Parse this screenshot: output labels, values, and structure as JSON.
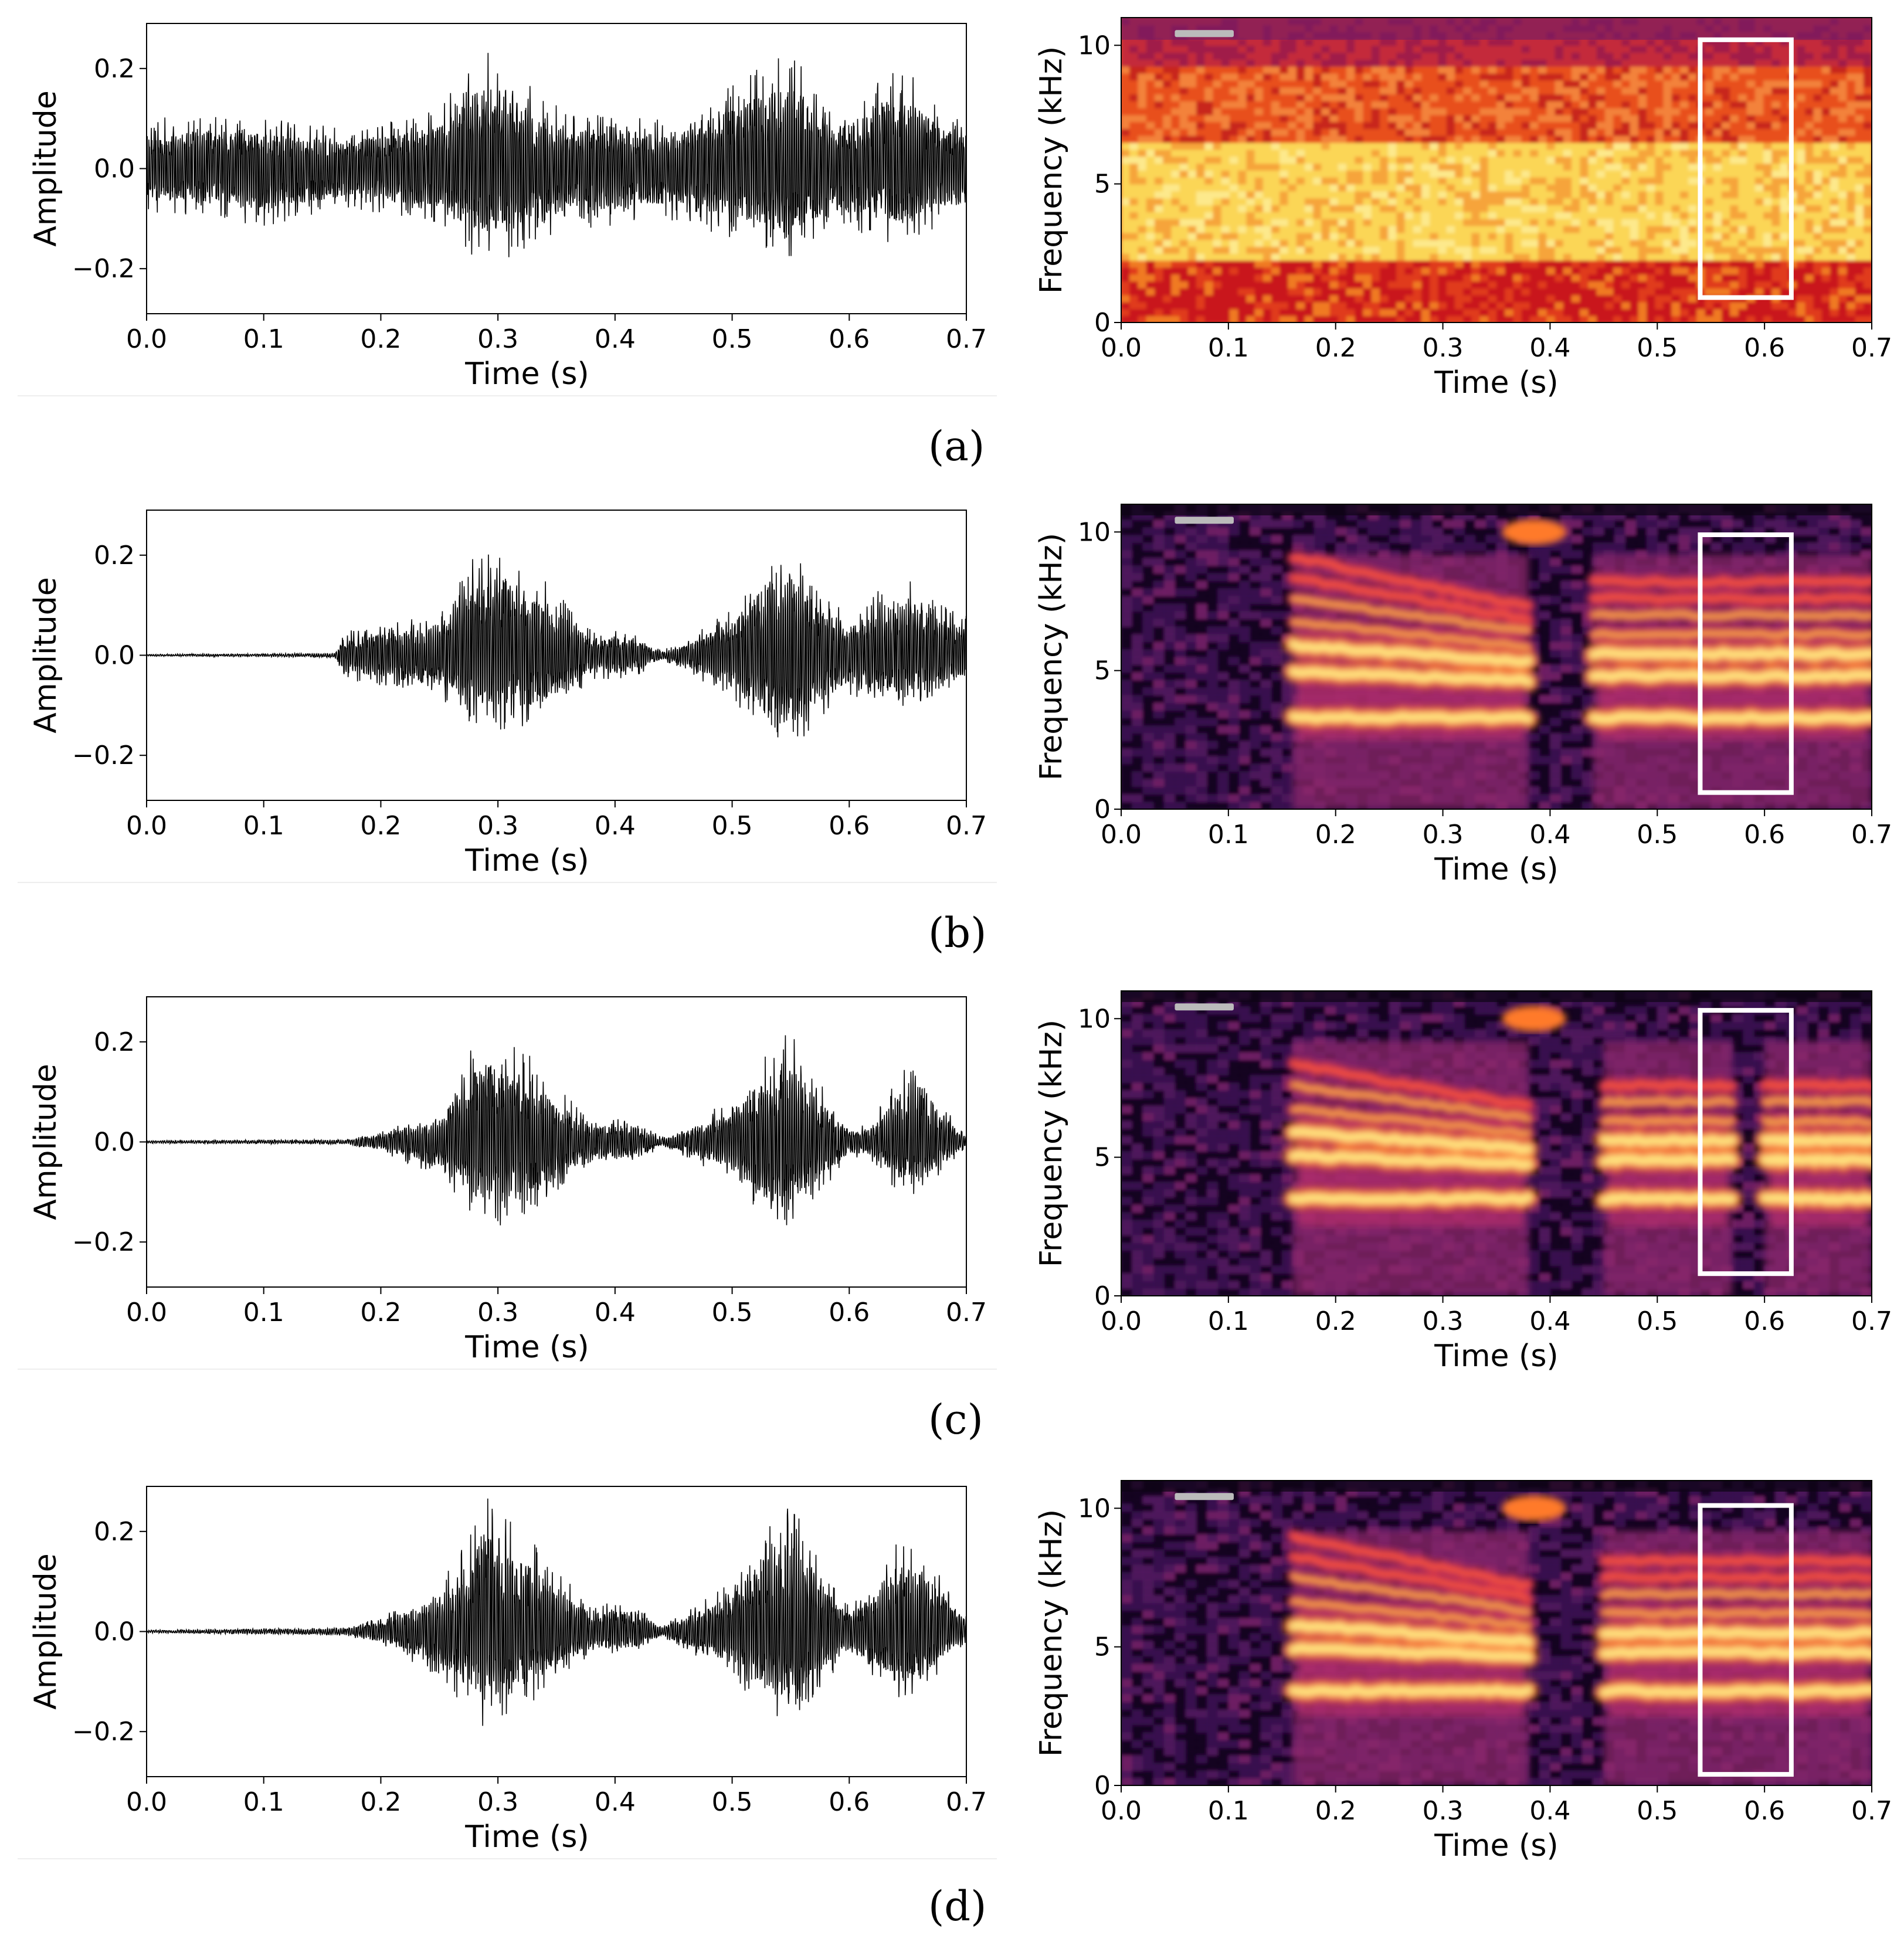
{
  "colors": {
    "waveform": "#000000",
    "highlight_box": "#ffffff",
    "colormap": "inferno-like (black-purple-red-orange-yellow)"
  },
  "panel_labels": [
    "(a)",
    "(b)",
    "(c)",
    "(d)"
  ],
  "chart_data": [
    {
      "panel": "(a)",
      "type": "line",
      "title": "",
      "xlabel": "Time (s)",
      "ylabel": "Amplitude",
      "xlim": [
        0.0,
        0.7
      ],
      "ylim": [
        -0.29,
        0.29
      ],
      "x_ticks": [
        "0.0",
        "0.1",
        "0.2",
        "0.3",
        "0.4",
        "0.5",
        "0.6",
        "0.7"
      ],
      "y_ticks": [
        "0.2",
        "0.0",
        "−0.2"
      ],
      "grid": false,
      "envelope": {
        "time": [
          0.0,
          0.05,
          0.1,
          0.15,
          0.17,
          0.2,
          0.25,
          0.28,
          0.3,
          0.33,
          0.36,
          0.4,
          0.43,
          0.46,
          0.5,
          0.53,
          0.55,
          0.58,
          0.6,
          0.63,
          0.65,
          0.68,
          0.7
        ],
        "upper": [
          0.1,
          0.11,
          0.1,
          0.09,
          0.08,
          0.09,
          0.12,
          0.22,
          0.24,
          0.16,
          0.11,
          0.12,
          0.1,
          0.11,
          0.17,
          0.22,
          0.24,
          0.14,
          0.13,
          0.19,
          0.2,
          0.11,
          0.1
        ],
        "lower": [
          -0.09,
          -0.1,
          -0.12,
          -0.09,
          -0.08,
          -0.09,
          -0.11,
          -0.18,
          -0.19,
          -0.15,
          -0.12,
          -0.12,
          -0.1,
          -0.11,
          -0.14,
          -0.16,
          -0.18,
          -0.13,
          -0.12,
          -0.15,
          -0.15,
          -0.11,
          -0.1
        ]
      }
    },
    {
      "panel": "(a)",
      "type": "heatmap",
      "title": "",
      "xlabel": "Time (s)",
      "ylabel": "Frequency (kHz)",
      "xlim": [
        0.0,
        0.7
      ],
      "ylim": [
        0,
        11
      ],
      "x_ticks": [
        "0.0",
        "0.1",
        "0.2",
        "0.3",
        "0.4",
        "0.5",
        "0.6",
        "0.7"
      ],
      "y_ticks": [
        "0",
        "5",
        "10"
      ],
      "highlight_box": {
        "t0": 0.54,
        "t1": 0.625,
        "f0": 0.9,
        "f1": 10.2
      },
      "description_values": {
        "style": "noisy",
        "harmonics": [],
        "voiced_segments": []
      }
    },
    {
      "panel": "(b)",
      "type": "line",
      "title": "",
      "xlabel": "Time (s)",
      "ylabel": "Amplitude",
      "xlim": [
        0.0,
        0.7
      ],
      "ylim": [
        -0.29,
        0.29
      ],
      "x_ticks": [
        "0.0",
        "0.1",
        "0.2",
        "0.3",
        "0.4",
        "0.5",
        "0.6",
        "0.7"
      ],
      "y_ticks": [
        "0.2",
        "0.0",
        "−0.2"
      ],
      "grid": false,
      "envelope": {
        "time": [
          0.0,
          0.1,
          0.16,
          0.17,
          0.2,
          0.25,
          0.28,
          0.3,
          0.33,
          0.36,
          0.38,
          0.4,
          0.42,
          0.44,
          0.46,
          0.5,
          0.53,
          0.55,
          0.58,
          0.6,
          0.63,
          0.65,
          0.68,
          0.7
        ],
        "upper": [
          0.002,
          0.003,
          0.005,
          0.05,
          0.06,
          0.09,
          0.2,
          0.23,
          0.18,
          0.1,
          0.05,
          0.05,
          0.04,
          0.01,
          0.03,
          0.1,
          0.2,
          0.22,
          0.12,
          0.08,
          0.14,
          0.16,
          0.1,
          0.08
        ],
        "lower": [
          -0.002,
          -0.003,
          -0.005,
          -0.05,
          -0.06,
          -0.09,
          -0.14,
          -0.16,
          -0.14,
          -0.09,
          -0.05,
          -0.05,
          -0.04,
          -0.01,
          -0.03,
          -0.09,
          -0.16,
          -0.19,
          -0.12,
          -0.08,
          -0.1,
          -0.11,
          -0.07,
          -0.06
        ]
      }
    },
    {
      "panel": "(b)",
      "type": "heatmap",
      "title": "",
      "xlabel": "Time (s)",
      "ylabel": "Frequency (kHz)",
      "xlim": [
        0.0,
        0.7
      ],
      "ylim": [
        0,
        11
      ],
      "x_ticks": [
        "0.0",
        "0.1",
        "0.2",
        "0.3",
        "0.4",
        "0.5",
        "0.6",
        "0.7"
      ],
      "y_ticks": [
        "0",
        "5",
        "10"
      ],
      "highlight_box": {
        "t0": 0.54,
        "t1": 0.625,
        "f0": 0.6,
        "f1": 9.9
      },
      "description_values": {
        "style": "clean",
        "harmonics": [
          3.3,
          4.8,
          5.6,
          6.3,
          7.0,
          7.6,
          8.2
        ],
        "voiced_segments": [
          [
            0.16,
            0.38
          ],
          [
            0.44,
            0.7
          ]
        ]
      }
    },
    {
      "panel": "(c)",
      "type": "line",
      "title": "",
      "xlabel": "Time (s)",
      "ylabel": "Amplitude",
      "xlim": [
        0.0,
        0.7
      ],
      "ylim": [
        -0.29,
        0.29
      ],
      "x_ticks": [
        "0.0",
        "0.1",
        "0.2",
        "0.3",
        "0.4",
        "0.5",
        "0.6",
        "0.7"
      ],
      "y_ticks": [
        "0.2",
        "0.0",
        "−0.2"
      ],
      "grid": false,
      "envelope": {
        "time": [
          0.0,
          0.1,
          0.17,
          0.2,
          0.25,
          0.28,
          0.3,
          0.33,
          0.36,
          0.38,
          0.4,
          0.42,
          0.44,
          0.46,
          0.5,
          0.53,
          0.55,
          0.58,
          0.6,
          0.62,
          0.64,
          0.66,
          0.68,
          0.7
        ],
        "upper": [
          0.003,
          0.004,
          0.005,
          0.02,
          0.07,
          0.2,
          0.23,
          0.17,
          0.09,
          0.04,
          0.05,
          0.04,
          0.01,
          0.03,
          0.09,
          0.19,
          0.22,
          0.1,
          0.03,
          0.04,
          0.14,
          0.16,
          0.08,
          0.01
        ],
        "lower": [
          -0.003,
          -0.004,
          -0.005,
          -0.02,
          -0.07,
          -0.16,
          -0.17,
          -0.14,
          -0.08,
          -0.04,
          -0.05,
          -0.04,
          -0.01,
          -0.03,
          -0.08,
          -0.16,
          -0.17,
          -0.09,
          -0.03,
          -0.04,
          -0.1,
          -0.11,
          -0.06,
          -0.01
        ]
      }
    },
    {
      "panel": "(c)",
      "type": "heatmap",
      "title": "",
      "xlabel": "Time (s)",
      "ylabel": "Frequency (kHz)",
      "xlim": [
        0.0,
        0.7
      ],
      "ylim": [
        0,
        11
      ],
      "x_ticks": [
        "0.0",
        "0.1",
        "0.2",
        "0.3",
        "0.4",
        "0.5",
        "0.6",
        "0.7"
      ],
      "y_ticks": [
        "0",
        "5",
        "10"
      ],
      "highlight_box": {
        "t0": 0.54,
        "t1": 0.625,
        "f0": 0.8,
        "f1": 10.3
      },
      "description_values": {
        "style": "gapped",
        "harmonics": [
          3.5,
          4.9,
          5.6,
          6.3,
          7.0,
          7.6
        ],
        "voiced_segments": [
          [
            0.16,
            0.38
          ],
          [
            0.45,
            0.57
          ],
          [
            0.6,
            0.7
          ]
        ]
      }
    },
    {
      "panel": "(d)",
      "type": "line",
      "title": "",
      "xlabel": "Time (s)",
      "ylabel": "Amplitude",
      "xlim": [
        0.0,
        0.7
      ],
      "ylim": [
        -0.29,
        0.29
      ],
      "x_ticks": [
        "0.0",
        "0.1",
        "0.2",
        "0.3",
        "0.4",
        "0.5",
        "0.6",
        "0.7"
      ],
      "y_ticks": [
        "0.2",
        "0.0",
        "−0.2"
      ],
      "grid": false,
      "envelope": {
        "time": [
          0.0,
          0.1,
          0.17,
          0.2,
          0.25,
          0.28,
          0.29,
          0.3,
          0.33,
          0.36,
          0.38,
          0.4,
          0.42,
          0.44,
          0.46,
          0.5,
          0.53,
          0.55,
          0.58,
          0.6,
          0.62,
          0.64,
          0.66,
          0.68,
          0.7
        ],
        "upper": [
          0.003,
          0.006,
          0.008,
          0.03,
          0.09,
          0.22,
          0.28,
          0.25,
          0.18,
          0.1,
          0.05,
          0.06,
          0.05,
          0.01,
          0.04,
          0.1,
          0.22,
          0.26,
          0.12,
          0.05,
          0.1,
          0.18,
          0.2,
          0.1,
          0.03
        ],
        "lower": [
          -0.003,
          -0.006,
          -0.008,
          -0.03,
          -0.09,
          -0.18,
          -0.2,
          -0.18,
          -0.14,
          -0.08,
          -0.05,
          -0.05,
          -0.04,
          -0.01,
          -0.04,
          -0.09,
          -0.17,
          -0.19,
          -0.1,
          -0.05,
          -0.09,
          -0.13,
          -0.14,
          -0.07,
          -0.02
        ]
      }
    },
    {
      "panel": "(d)",
      "type": "heatmap",
      "title": "",
      "xlabel": "Time (s)",
      "ylabel": "Frequency (kHz)",
      "xlim": [
        0.0,
        0.7
      ],
      "ylim": [
        0,
        11
      ],
      "x_ticks": [
        "0.0",
        "0.1",
        "0.2",
        "0.3",
        "0.4",
        "0.5",
        "0.6",
        "0.7"
      ],
      "y_ticks": [
        "0",
        "5",
        "10"
      ],
      "highlight_box": {
        "t0": 0.54,
        "t1": 0.625,
        "f0": 0.4,
        "f1": 10.1
      },
      "description_values": {
        "style": "clean",
        "harmonics": [
          3.4,
          4.8,
          5.5,
          6.2,
          6.9,
          7.5,
          8.1
        ],
        "voiced_segments": [
          [
            0.16,
            0.38
          ],
          [
            0.45,
            0.7
          ]
        ]
      }
    }
  ]
}
